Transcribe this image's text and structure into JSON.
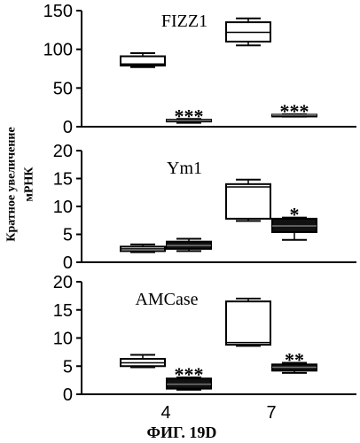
{
  "figure_caption": "ФИГ. 19D",
  "ylabel_lines": [
    "Кратное увеличение",
    "мРНК"
  ],
  "chart_data": [
    {
      "type": "box",
      "title": "FIZZ1",
      "categories": [
        "4",
        "7"
      ],
      "ylim": [
        0,
        150
      ],
      "yticks": [
        0,
        50,
        100,
        150
      ],
      "ylabel": "Кратное увеличение мРНК",
      "series": [
        {
          "fill": "#ffffff",
          "boxes": [
            {
              "x": "4",
              "min": 77,
              "q1": 79,
              "median": 81,
              "q3": 91,
              "max": 95
            },
            {
              "x": "7",
              "min": 105,
              "q1": 110,
              "median": 122,
              "q3": 135,
              "max": 140
            }
          ]
        },
        {
          "fill": "#111111",
          "boxes": [
            {
              "x": "4",
              "min": 5,
              "q1": 7,
              "median": 8,
              "q3": 9,
              "max": 10,
              "annotation": "***"
            },
            {
              "x": "7",
              "min": 13,
              "q1": 14,
              "median": 15,
              "q3": 15.5,
              "max": 16,
              "annotation": "***"
            }
          ]
        }
      ]
    },
    {
      "type": "box",
      "title": "Ym1",
      "categories": [
        "4",
        "7"
      ],
      "ylim": [
        0,
        20
      ],
      "yticks": [
        0,
        5,
        10,
        15,
        20
      ],
      "series": [
        {
          "fill": "#ffffff",
          "boxes": [
            {
              "x": "4",
              "min": 1.8,
              "q1": 2.0,
              "median": 2.4,
              "q3": 2.8,
              "max": 3.2
            },
            {
              "x": "7",
              "min": 7.4,
              "q1": 7.8,
              "median": 13.5,
              "q3": 14.0,
              "max": 14.8
            }
          ]
        },
        {
          "fill": "#111111",
          "boxes": [
            {
              "x": "4",
              "min": 2.0,
              "q1": 2.4,
              "median": 3.0,
              "q3": 3.7,
              "max": 4.2
            },
            {
              "x": "7",
              "min": 4.0,
              "q1": 5.4,
              "median": 6.5,
              "q3": 7.8,
              "max": 8.0,
              "annotation": "*"
            }
          ]
        }
      ]
    },
    {
      "type": "box",
      "title": "AMCase",
      "categories": [
        "4",
        "7"
      ],
      "ylim": [
        0,
        20
      ],
      "yticks": [
        0,
        5,
        10,
        15,
        20
      ],
      "series": [
        {
          "fill": "#ffffff",
          "boxes": [
            {
              "x": "4",
              "min": 4.8,
              "q1": 5.0,
              "median": 5.6,
              "q3": 6.3,
              "max": 7.0
            },
            {
              "x": "7",
              "min": 8.6,
              "q1": 8.8,
              "median": 9.2,
              "q3": 16.5,
              "max": 17.0
            }
          ]
        },
        {
          "fill": "#111111",
          "boxes": [
            {
              "x": "4",
              "min": 0.8,
              "q1": 1.0,
              "median": 1.8,
              "q3": 2.8,
              "max": 3.0,
              "annotation": "***"
            },
            {
              "x": "7",
              "min": 3.8,
              "q1": 4.2,
              "median": 4.8,
              "q3": 5.3,
              "max": 5.6,
              "annotation": "**"
            }
          ]
        }
      ]
    }
  ]
}
